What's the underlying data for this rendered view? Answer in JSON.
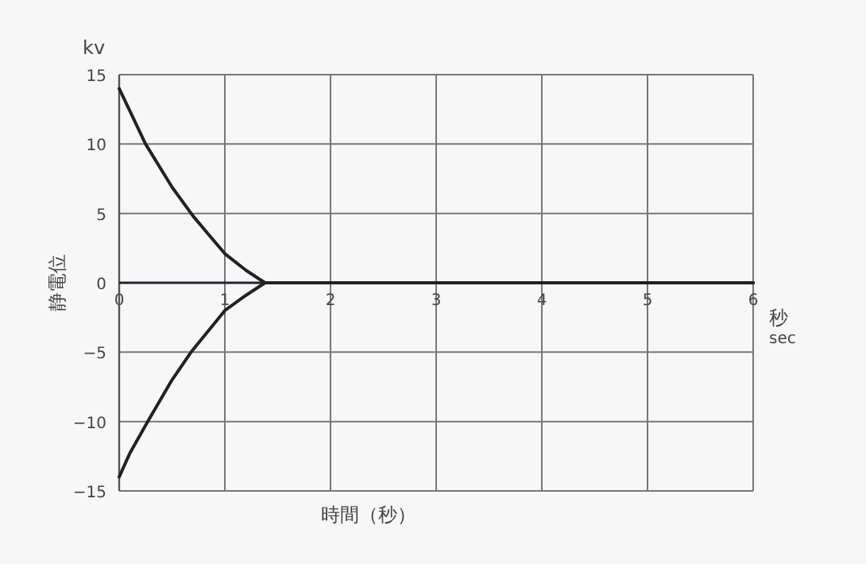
{
  "chart_data": {
    "type": "line",
    "xlabel": "時間（秒）",
    "ylabel": "静電位",
    "annotations": [
      "kv",
      "秒",
      "sec"
    ],
    "xlim": [
      0,
      6
    ],
    "ylim": [
      -15,
      15
    ],
    "xticks": [
      0,
      1,
      2,
      3,
      4,
      5,
      6
    ],
    "yticks": [
      -15,
      -10,
      -5,
      0,
      5,
      10,
      15
    ],
    "grid": true,
    "series": [
      {
        "color": "#222222",
        "x": [
          0,
          0.1,
          0.25,
          0.5,
          0.7,
          1,
          1.2,
          1.38,
          2,
          6
        ],
        "values": [
          14,
          12.4,
          10,
          6.9,
          4.8,
          2.1,
          0.9,
          0,
          0,
          0
        ]
      },
      {
        "color": "#222222",
        "x": [
          0,
          0.1,
          0.27,
          0.5,
          0.68,
          1,
          1.2,
          1.38,
          2,
          6
        ],
        "values": [
          -14,
          -12.3,
          -10,
          -7,
          -5,
          -2,
          -0.9,
          0,
          0,
          0
        ]
      }
    ]
  }
}
